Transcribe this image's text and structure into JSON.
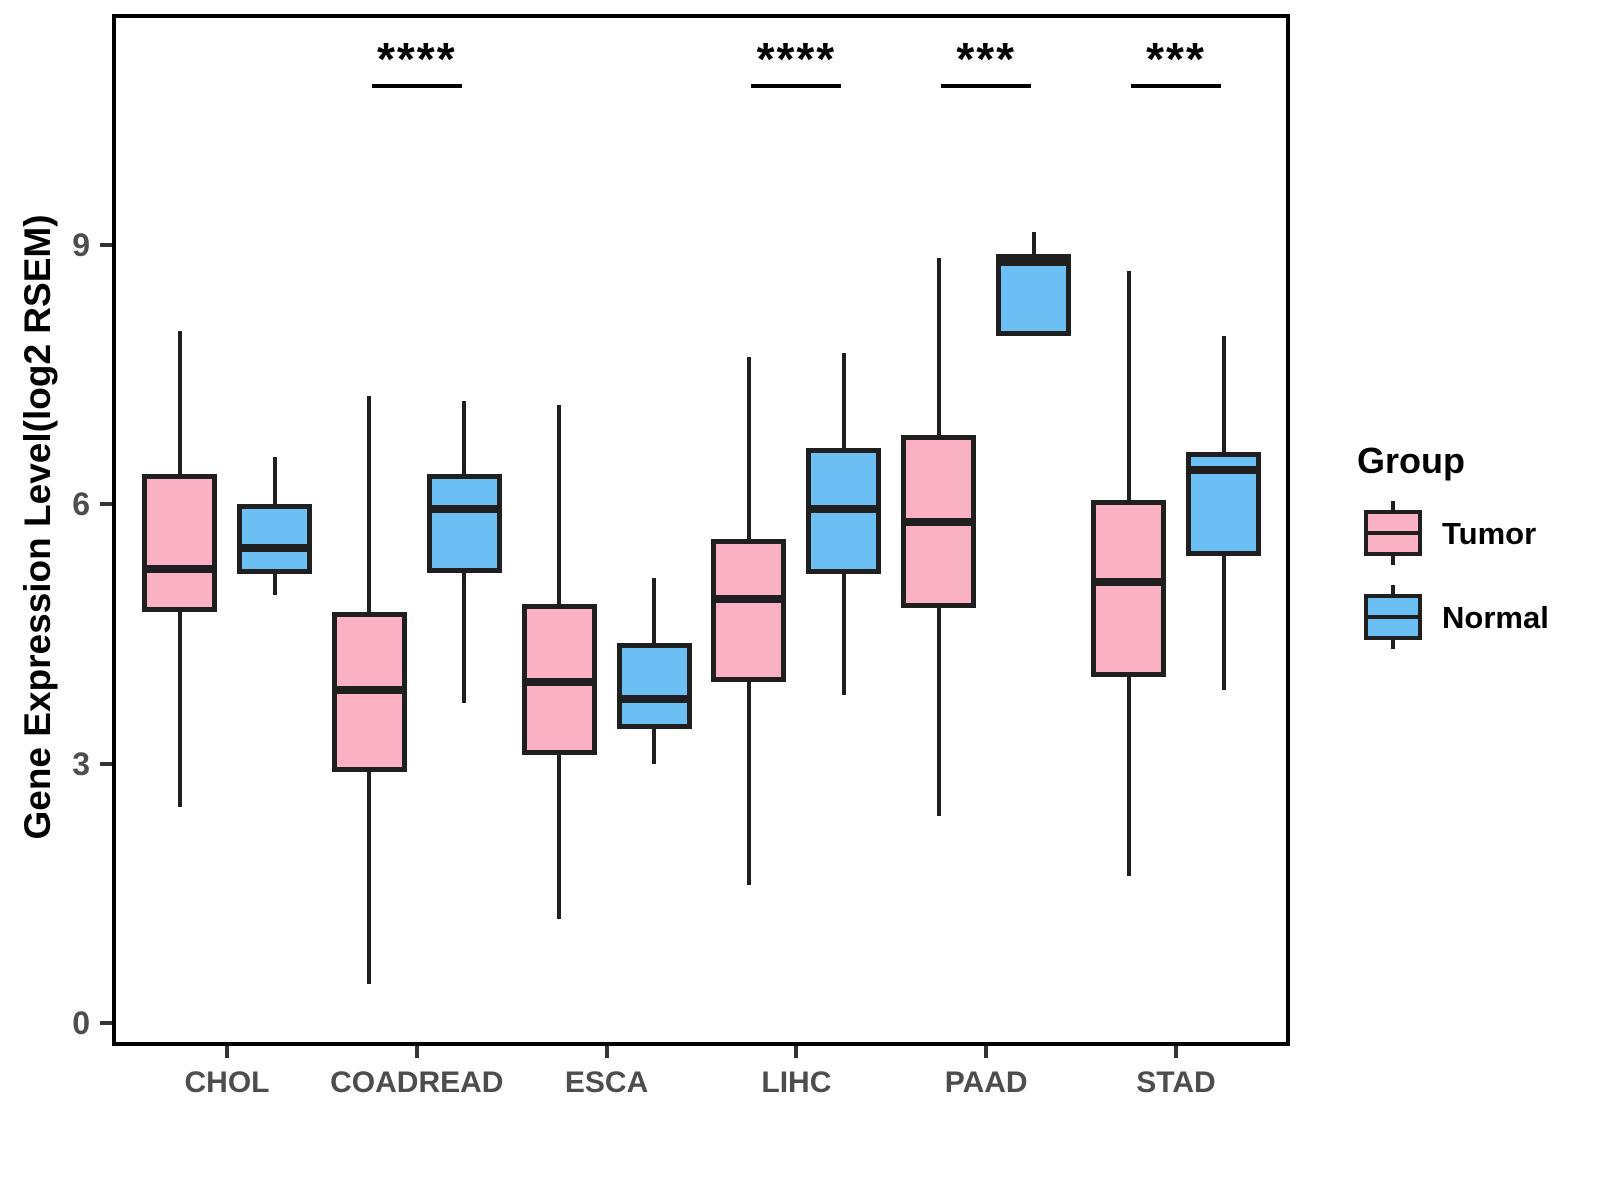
{
  "figure": {
    "y_axis": {
      "title": "Gene Expression Level(log2 RSEM)",
      "ticks": [
        {
          "label": "0",
          "value": 0
        },
        {
          "label": "3",
          "value": 3
        },
        {
          "label": "6",
          "value": 6
        },
        {
          "label": "9",
          "value": 9
        }
      ]
    },
    "legend": {
      "title": "Group",
      "entries": [
        {
          "label": "Tumor",
          "color": "#FAB1C3"
        },
        {
          "label": "Normal",
          "color": "#6CBFF3"
        }
      ]
    }
  },
  "chart_data": {
    "type": "boxplot",
    "title": "",
    "xlabel": "",
    "ylabel": "Gene Expression Level(log2 RSEM)",
    "ylim": [
      -0.3,
      11.7
    ],
    "grid": false,
    "legend_position": "right",
    "categories": [
      "CHOL",
      "COADREAD",
      "ESCA",
      "LIHC",
      "PAAD",
      "STAD"
    ],
    "series": [
      {
        "name": "Tumor",
        "fill_color": "#FAB1C3",
        "stroke_color": "#1f1f1f",
        "stats": [
          {
            "category": "CHOL",
            "whisker_low": 2.5,
            "q1": 4.75,
            "median": 5.25,
            "q3": 6.35,
            "whisker_high": 8.0
          },
          {
            "category": "COADREAD",
            "whisker_low": 0.45,
            "q1": 2.9,
            "median": 3.85,
            "q3": 4.75,
            "whisker_high": 7.25
          },
          {
            "category": "ESCA",
            "whisker_low": 1.2,
            "q1": 3.1,
            "median": 3.95,
            "q3": 4.85,
            "whisker_high": 7.15
          },
          {
            "category": "LIHC",
            "whisker_low": 1.6,
            "q1": 3.95,
            "median": 4.9,
            "q3": 5.6,
            "whisker_high": 7.7
          },
          {
            "category": "PAAD",
            "whisker_low": 2.4,
            "q1": 4.8,
            "median": 5.8,
            "q3": 6.8,
            "whisker_high": 8.85
          },
          {
            "category": "STAD",
            "whisker_low": 1.7,
            "q1": 4.0,
            "median": 5.1,
            "q3": 6.05,
            "whisker_high": 8.7
          }
        ]
      },
      {
        "name": "Normal",
        "fill_color": "#6CBFF3",
        "stroke_color": "#1f1f1f",
        "stats": [
          {
            "category": "CHOL",
            "whisker_low": 4.95,
            "q1": 5.2,
            "median": 5.5,
            "q3": 6.0,
            "whisker_high": 6.55
          },
          {
            "category": "COADREAD",
            "whisker_low": 3.7,
            "q1": 5.2,
            "median": 5.95,
            "q3": 6.35,
            "whisker_high": 7.2
          },
          {
            "category": "ESCA",
            "whisker_low": 3.0,
            "q1": 3.4,
            "median": 3.75,
            "q3": 4.4,
            "whisker_high": 5.15
          },
          {
            "category": "LIHC",
            "whisker_low": 3.8,
            "q1": 5.2,
            "median": 5.95,
            "q3": 6.65,
            "whisker_high": 7.75
          },
          {
            "category": "PAAD",
            "whisker_low": 7.95,
            "q1": 7.95,
            "median": 8.8,
            "q3": 8.9,
            "whisker_high": 9.15
          },
          {
            "category": "STAD",
            "whisker_low": 3.85,
            "q1": 5.4,
            "median": 6.4,
            "q3": 6.6,
            "whisker_high": 7.95
          }
        ]
      }
    ],
    "significance": [
      {
        "category": "COADREAD",
        "category_index": 1,
        "label": "****"
      },
      {
        "category": "LIHC",
        "category_index": 3,
        "label": "****"
      },
      {
        "category": "PAAD",
        "category_index": 4,
        "label": "***"
      },
      {
        "category": "STAD",
        "category_index": 5,
        "label": "***"
      }
    ]
  }
}
